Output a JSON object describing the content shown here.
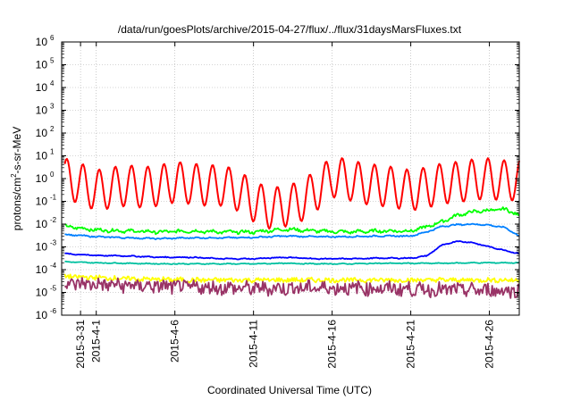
{
  "chart_data": {
    "type": "line",
    "title": "/data/run/goesPlots/archive/2015-04-27/flux/../flux/31daysMarsFluxes.txt",
    "xlabel": "Coordinated Universal Time (UTC)",
    "ylabel": {
      "pre": "protons/cm",
      "sup": "2",
      "post": "-s-sr-MeV"
    },
    "yscale": "log",
    "ylim_exp": [
      -6,
      6
    ],
    "xlim_day": [
      29.8,
      58.9
    ],
    "x_ticks": [
      {
        "day": 31,
        "label": "2015-3-31"
      },
      {
        "day": 32,
        "label": "2015-4-1"
      },
      {
        "day": 37,
        "label": "2015-4-6"
      },
      {
        "day": 42,
        "label": "2015-4-11"
      },
      {
        "day": 47,
        "label": "2015-4-16"
      },
      {
        "day": 52,
        "label": "2015-4-21"
      },
      {
        "day": 57,
        "label": "2015-4-26"
      }
    ],
    "y_ticks": [
      {
        "base": "10",
        "exp": "-6"
      },
      {
        "base": "10",
        "exp": "-5"
      },
      {
        "base": "10",
        "exp": "-4"
      },
      {
        "base": "10",
        "exp": "-3"
      },
      {
        "base": "10",
        "exp": "-2"
      },
      {
        "base": "10",
        "exp": "-1"
      },
      {
        "base": "10",
        "exp": "0"
      },
      {
        "base": "10",
        "exp": "1"
      },
      {
        "base": "10",
        "exp": "2"
      },
      {
        "base": "10",
        "exp": "3"
      },
      {
        "base": "10",
        "exp": "4"
      },
      {
        "base": "10",
        "exp": "5"
      },
      {
        "base": "10",
        "exp": "6"
      }
    ],
    "grid": true,
    "series": [
      {
        "color": "#ff0000",
        "x": [
          30,
          31,
          32,
          33,
          34,
          35,
          36,
          37,
          38,
          39,
          40,
          41,
          42,
          43,
          44,
          45,
          46,
          47,
          48,
          49,
          50,
          51,
          52,
          53,
          54,
          55,
          56,
          57,
          58,
          58.9
        ],
        "y": [
          1.0,
          0.6,
          0.3,
          0.4,
          0.5,
          0.4,
          0.5,
          0.7,
          0.6,
          0.5,
          0.5,
          0.3,
          0.1,
          0.05,
          0.06,
          0.1,
          0.3,
          1.2,
          0.9,
          0.6,
          0.5,
          0.4,
          0.3,
          0.4,
          0.6,
          0.7,
          0.9,
          1.0,
          0.8,
          0.9
        ],
        "osc": 0.9
      },
      {
        "color": "#00ff00",
        "x": [
          30,
          32,
          34,
          36,
          38,
          40,
          42,
          44,
          46,
          48,
          50,
          52,
          53,
          54,
          55,
          56,
          57,
          58,
          58.9
        ],
        "y": [
          0.008,
          0.0055,
          0.005,
          0.0045,
          0.005,
          0.0045,
          0.0045,
          0.006,
          0.005,
          0.0045,
          0.005,
          0.005,
          0.0075,
          0.013,
          0.025,
          0.035,
          0.04,
          0.045,
          0.025
        ],
        "osc": 0.2
      },
      {
        "color": "#0080ff",
        "x": [
          30,
          32,
          34,
          36,
          38,
          40,
          42,
          44,
          46,
          48,
          50,
          52,
          53,
          54,
          55,
          56,
          57,
          58,
          58.9
        ],
        "y": [
          0.0035,
          0.0028,
          0.0025,
          0.0023,
          0.0025,
          0.0025,
          0.0026,
          0.003,
          0.0028,
          0.0028,
          0.003,
          0.003,
          0.0045,
          0.008,
          0.0095,
          0.01,
          0.009,
          0.007,
          0.003
        ],
        "osc": 0.08
      },
      {
        "color": "#0000ff",
        "x": [
          30,
          32,
          34,
          36,
          38,
          40,
          42,
          44,
          46,
          48,
          50,
          52,
          53,
          54,
          55,
          56,
          57,
          58,
          58.9
        ],
        "y": [
          0.0005,
          0.00042,
          0.0004,
          0.00035,
          0.00035,
          0.0003,
          0.0003,
          0.00035,
          0.0003,
          0.0003,
          0.00032,
          0.00032,
          0.0004,
          0.0012,
          0.0018,
          0.0015,
          0.001,
          0.0007,
          0.0005
        ],
        "osc": 0.06
      },
      {
        "color": "#00c0a0",
        "x": [
          30,
          32,
          34,
          36,
          38,
          40,
          42,
          44,
          46,
          48,
          50,
          52,
          54,
          56,
          58,
          58.9
        ],
        "y": [
          0.00022,
          0.0002,
          0.00019,
          0.00018,
          0.00018,
          0.00018,
          0.00018,
          0.00019,
          0.00018,
          0.00018,
          0.00019,
          0.00019,
          0.00019,
          0.0002,
          0.0002,
          0.0002
        ],
        "osc": 0.05
      },
      {
        "color": "#ffff00",
        "x": [
          30,
          34,
          38,
          42,
          46,
          50,
          54,
          58.9
        ],
        "y": [
          5e-05,
          4e-05,
          3.5e-05,
          3.5e-05,
          3.5e-05,
          3.5e-05,
          3.5e-05,
          3.5e-05
        ],
        "osc": 0.1
      },
      {
        "color": "#993366",
        "x": [
          30,
          34,
          38,
          42,
          46,
          50,
          54,
          58.9
        ],
        "y": [
          2.5e-05,
          2e-05,
          1.7e-05,
          1.5e-05,
          1.6e-05,
          1.5e-05,
          1.3e-05,
          1.2e-05
        ],
        "osc": 0.3
      }
    ]
  }
}
